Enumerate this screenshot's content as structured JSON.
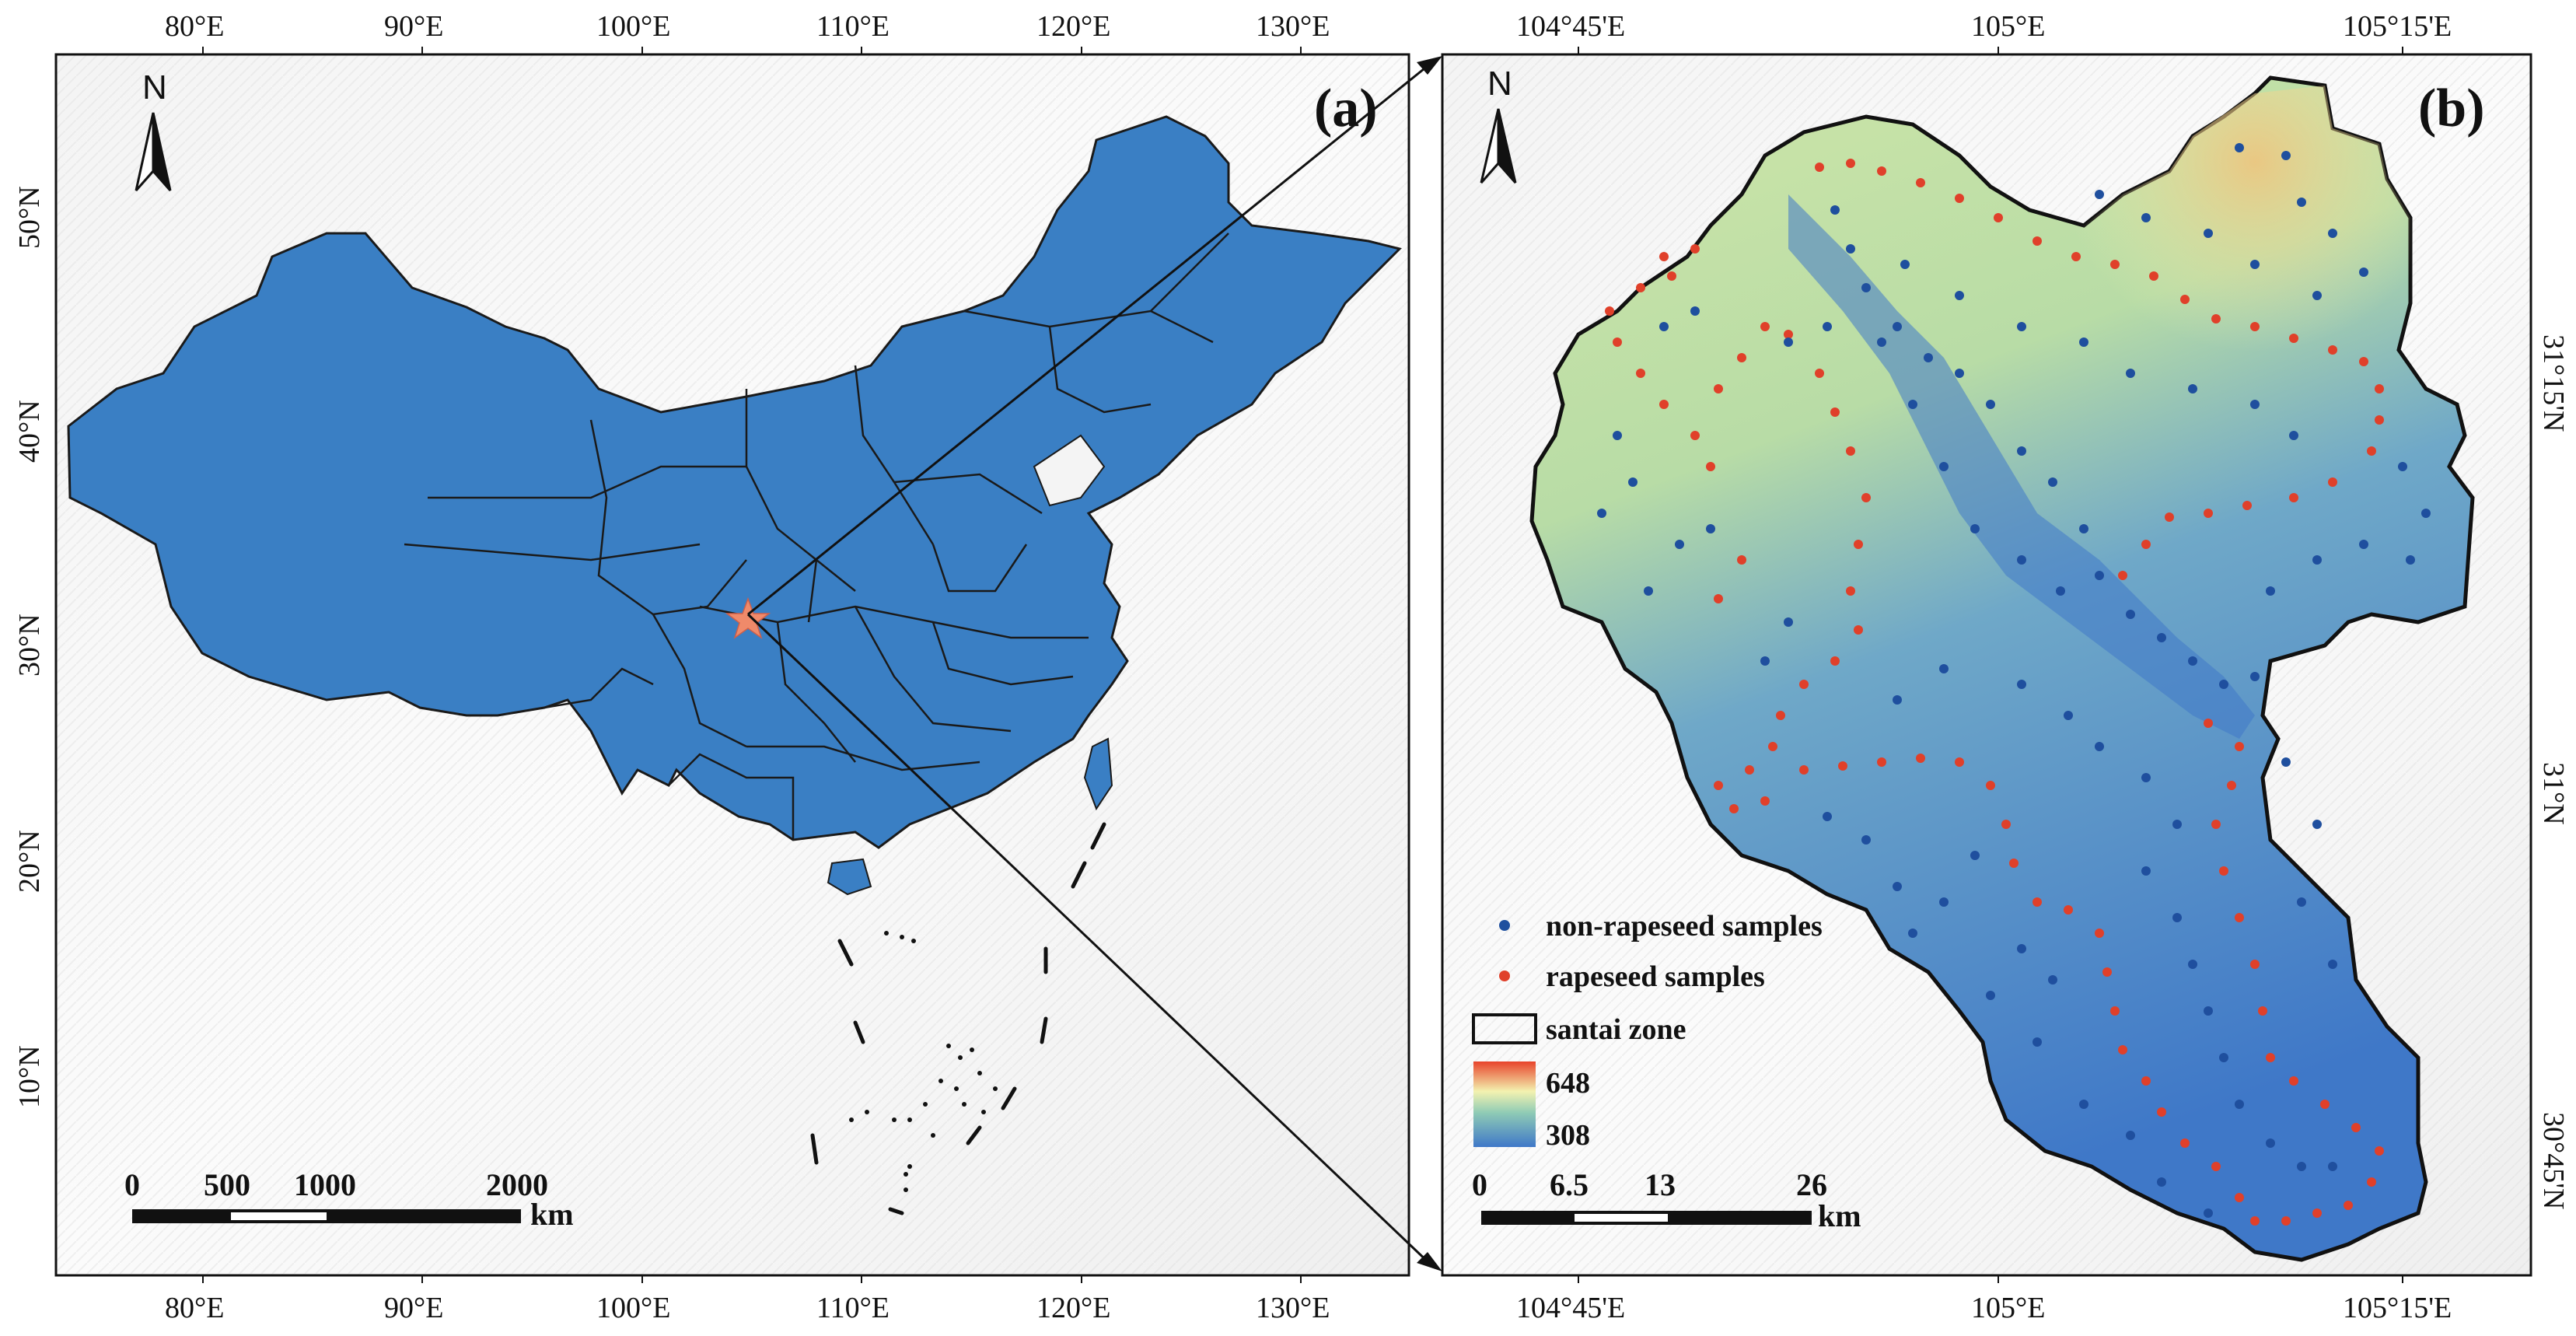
{
  "panel_a": {
    "label": "(a)",
    "north": "N",
    "lon_ticks": [
      "80°E",
      "90°E",
      "100°E",
      "110°E",
      "120°E",
      "130°E"
    ],
    "lat_ticks": [
      "50°N",
      "40°N",
      "30°N",
      "20°N",
      "10°N"
    ],
    "scale_labels": [
      "0",
      "500",
      "1000",
      "2000"
    ],
    "scale_unit": "km",
    "colors": {
      "land": "#3a7fc4",
      "star": "#f08a6a",
      "borders": "#1a1a1a"
    }
  },
  "panel_b": {
    "label": "(b)",
    "north": "N",
    "lon_ticks": [
      "104°45'E",
      "105°E",
      "105°15'E"
    ],
    "lat_ticks": [
      "31°15'N",
      "31°N",
      "30°45'N"
    ],
    "scale_labels": [
      "0",
      "6.5",
      "13",
      "26"
    ],
    "scale_unit": "km",
    "legend": {
      "non_rapeseed": "non-rapeseed samples",
      "rapeseed": "rapeseed samples",
      "zone": "santai zone",
      "elev_high": "648",
      "elev_low": "308"
    },
    "colors": {
      "non_rapeseed": "#1f4f9e",
      "rapeseed": "#e0402a",
      "elev_high": "#e8432b",
      "elev_mid": "#f3f2b0",
      "elev_low": "#3f78c8"
    }
  }
}
